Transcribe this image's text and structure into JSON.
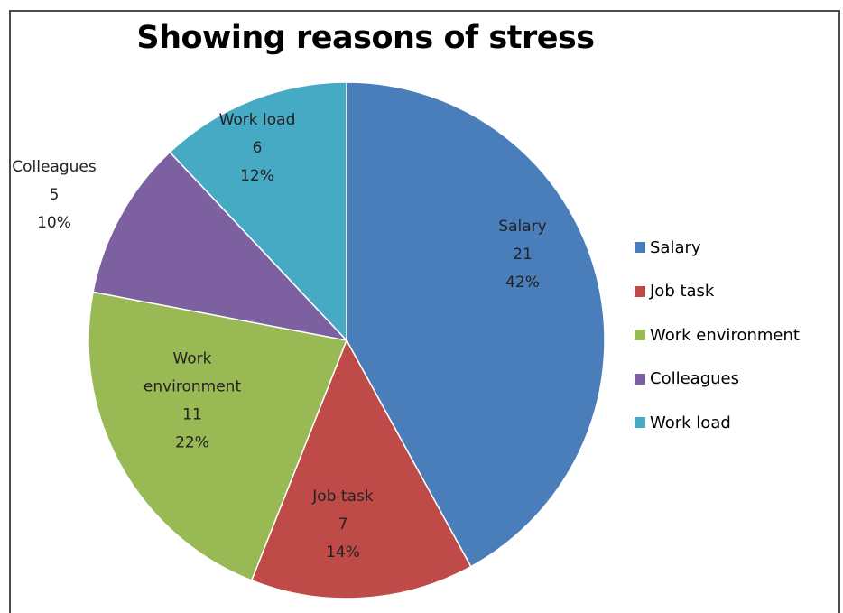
{
  "chart_data": {
    "type": "pie",
    "title": "Showing reasons of stress",
    "categories": [
      "Salary",
      "Job task",
      "Work environment",
      "Colleagues",
      "Work load"
    ],
    "values": [
      21,
      7,
      11,
      5,
      6
    ],
    "percentages": [
      "42%",
      "14%",
      "22%",
      "10%",
      "12%"
    ],
    "slice_labels": [
      [
        "Salary",
        "21",
        "42%"
      ],
      [
        "Job task",
        "7",
        "14%"
      ],
      [
        "Work",
        "environment",
        "11",
        "22%"
      ],
      [
        "Colleagues",
        "5",
        "10%"
      ],
      [
        "Work load",
        "6",
        "12%"
      ]
    ],
    "colors": [
      "#4a7ebb",
      "#be4b48",
      "#98b954",
      "#7d60a0",
      "#46aac5"
    ],
    "legend": {
      "position": "right",
      "entries": [
        "Salary",
        "Job task",
        "Work environment",
        "Colleagues",
        "Work load"
      ]
    },
    "start_angle": "12 o'clock",
    "direction": "clockwise"
  }
}
